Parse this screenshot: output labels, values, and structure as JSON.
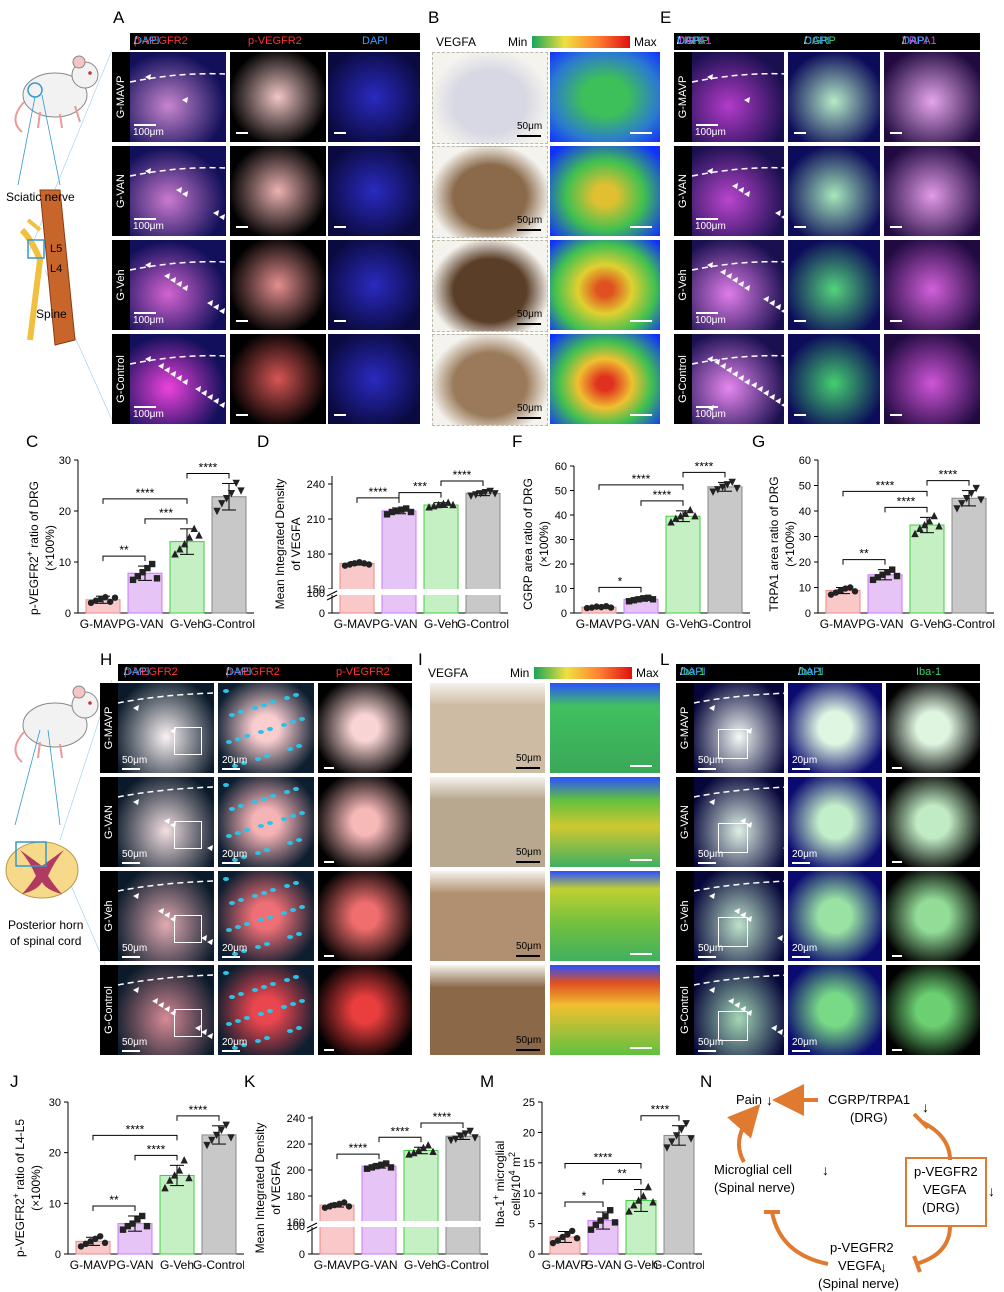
{
  "panel_labels": {
    "A": "A",
    "B": "B",
    "C": "C",
    "D": "D",
    "E": "E",
    "F": "F",
    "G": "G",
    "H": "H",
    "I": "I",
    "J": "J",
    "K": "K",
    "L": "L",
    "M": "M",
    "N": "N"
  },
  "groups": [
    "G-MAVP",
    "G-VAN",
    "G-Veh",
    "G-Control"
  ],
  "anatomy_top": {
    "sciatic": "Sciatic nerve",
    "l5": "L5",
    "l4": "L4",
    "spine": "Spine"
  },
  "anatomy_bottom": {
    "horn_line1": "Posterior horn",
    "horn_line2": "of spinal cord"
  },
  "panel_A": {
    "h1a": "p-VEGFR2",
    "h1b": "/",
    "h1c": "DAPI",
    "h2": "p-VEGFR2",
    "h3": "DAPI",
    "scale": "100μm"
  },
  "panel_B": {
    "title": "VEGFA",
    "min": "Min",
    "max": "Max",
    "scale": "50μm"
  },
  "panel_E": {
    "h1a": "CGRP",
    "h1b": "/",
    "h1c": "TRPA1",
    "h1d": "/",
    "h1e": "DAPI",
    "h2a": "CGRP",
    "h2b": "/",
    "h2c": "DAPI",
    "h3a": "TRPA1",
    "h3b": "/",
    "h3c": "DAPI",
    "scale": "100μm"
  },
  "panel_H": {
    "h1a": "p-VEGFR2",
    "h1b": "/",
    "h1c": "DAPI",
    "h2a": "p-VEGFR2",
    "h2b": "/",
    "h2c": "DAPI",
    "h3": "p-VEGFR2",
    "scale1": "50μm",
    "scale2": "20μm"
  },
  "panel_I": {
    "title": "VEGFA",
    "min": "Min",
    "max": "Max",
    "scale": "50μm"
  },
  "panel_L": {
    "h1a": "Iba-1",
    "h1b": "/",
    "h1c": "DAPI",
    "h2a": "Iba-1",
    "h2b": "/",
    "h2c": "DAPI",
    "h3": "Iba-1",
    "scale1": "50μm",
    "scale2": "20μm"
  },
  "colors": {
    "mavp": "#f9c8c8",
    "van": "#e6c4f5",
    "veh": "#c4f0c4",
    "control": "#c8c8c8",
    "mavp_edge": "#e88",
    "van_edge": "#c7f",
    "veh_edge": "#4c4",
    "control_edge": "#888",
    "arrow": "#e07a30"
  },
  "chart_data": [
    {
      "id": "C",
      "type": "bar",
      "categories": [
        "G-MAVP",
        "G-VAN",
        "G-Veh",
        "G-Control"
      ],
      "values": [
        2.6,
        7.8,
        14.0,
        22.8
      ],
      "sd": [
        0.7,
        1.4,
        2.5,
        2.6
      ],
      "points": [
        [
          2.0,
          2.4,
          2.7,
          3.1,
          2.2,
          3.0
        ],
        [
          6.5,
          7.2,
          8.0,
          8.8,
          9.6,
          6.8
        ],
        [
          11.5,
          12.5,
          13.5,
          14.8,
          16.5,
          15.2
        ],
        [
          20.0,
          21.5,
          22.5,
          23.5,
          25.5,
          24.0
        ]
      ],
      "ylabel_a": "p-VEGFR2",
      "ylabel_sup": "+",
      "ylabel_b": " ratio of DRG",
      "ylabel2": "(×100%)",
      "ylim": [
        0,
        30
      ],
      "ticks": [
        "0",
        "10",
        "20",
        "30"
      ],
      "brackets": [
        {
          "from": 0,
          "to": 1,
          "label": "**"
        },
        {
          "from": 1,
          "to": 2,
          "label": "***"
        },
        {
          "from": 0,
          "to": 2,
          "label": "****"
        },
        {
          "from": 2,
          "to": 3,
          "label": "****"
        }
      ]
    },
    {
      "id": "D",
      "type": "bar",
      "categories": [
        "G-MAVP",
        "G-VAN",
        "G-Veh",
        "G-Control"
      ],
      "values": [
        172,
        217,
        222,
        232
      ],
      "sd": [
        1.5,
        2.5,
        2.0,
        2.0
      ],
      "points": [
        [
          170,
          171,
          172,
          173,
          172,
          171
        ],
        [
          214,
          216,
          217,
          218,
          219,
          216
        ],
        [
          220,
          221,
          222,
          223,
          224,
          222
        ],
        [
          230,
          231,
          232,
          233,
          234,
          232
        ]
      ],
      "ylabel1": "Mean Integrated Density",
      "ylabel2": "of VEGFA",
      "ticks": [
        "0",
        "100",
        "150",
        "180",
        "210",
        "240"
      ],
      "brackets": [
        {
          "from": 0,
          "to": 1,
          "label": "****"
        },
        {
          "from": 1,
          "to": 2,
          "label": "***"
        },
        {
          "from": 2,
          "to": 3,
          "label": "****"
        }
      ]
    },
    {
      "id": "F",
      "type": "bar",
      "categories": [
        "G-MAVP",
        "G-VAN",
        "G-Veh",
        "G-Control"
      ],
      "values": [
        2.4,
        5.6,
        39.5,
        51.5
      ],
      "sd": [
        0.5,
        0.8,
        2.2,
        1.8
      ],
      "points": [
        [
          2.0,
          2.2,
          2.6,
          2.4,
          2.8,
          2.2
        ],
        [
          4.8,
          5.2,
          5.6,
          6.0,
          6.2,
          5.6
        ],
        [
          37.0,
          38.5,
          39.5,
          40.5,
          42.0,
          39.5
        ],
        [
          49.5,
          50.5,
          51.5,
          52.5,
          53.5,
          51.0
        ]
      ],
      "ylabel1": "CGRP area ratio of DRG",
      "ylabel2": "(×100%)",
      "ylim": [
        0,
        60
      ],
      "ticks": [
        "0",
        "10",
        "20",
        "30",
        "40",
        "50",
        "60"
      ],
      "brackets": [
        {
          "from": 0,
          "to": 1,
          "label": "*"
        },
        {
          "from": 1,
          "to": 2,
          "label": "****"
        },
        {
          "from": 0,
          "to": 2,
          "label": "****"
        },
        {
          "from": 2,
          "to": 3,
          "label": "****"
        }
      ]
    },
    {
      "id": "G",
      "type": "bar",
      "categories": [
        "G-MAVP",
        "G-VAN",
        "G-Veh",
        "G-Control"
      ],
      "values": [
        8.8,
        15.0,
        34.5,
        45.0
      ],
      "sd": [
        1.2,
        2.0,
        3.0,
        3.0
      ],
      "points": [
        [
          7.2,
          8.0,
          8.8,
          9.6,
          10.0,
          8.5
        ],
        [
          13.0,
          14.0,
          15.0,
          16.0,
          17.0,
          14.5
        ],
        [
          31.0,
          33.0,
          34.5,
          36.0,
          38.0,
          34.0
        ],
        [
          41.0,
          43.0,
          45.0,
          47.0,
          49.0,
          44.5
        ]
      ],
      "ylabel1": "TRPA1 area ratio of DRG",
      "ylabel2": "(×100%)",
      "ylim": [
        0,
        60
      ],
      "ticks": [
        "0",
        "10",
        "20",
        "30",
        "40",
        "50",
        "60"
      ],
      "brackets": [
        {
          "from": 0,
          "to": 1,
          "label": "**"
        },
        {
          "from": 1,
          "to": 2,
          "label": "****"
        },
        {
          "from": 0,
          "to": 2,
          "label": "****"
        },
        {
          "from": 2,
          "to": 3,
          "label": "****"
        }
      ]
    },
    {
      "id": "J",
      "type": "bar",
      "categories": [
        "G-MAVP",
        "G-VAN",
        "G-Veh",
        "G-Control"
      ],
      "values": [
        2.5,
        6.0,
        15.5,
        23.5
      ],
      "sd": [
        0.8,
        1.5,
        2.0,
        1.8
      ],
      "points": [
        [
          1.5,
          2.0,
          2.5,
          3.0,
          3.5,
          2.2
        ],
        [
          4.8,
          5.5,
          6.0,
          6.8,
          7.5,
          5.5
        ],
        [
          13.0,
          14.5,
          15.5,
          16.5,
          18.5,
          15.0
        ],
        [
          21.5,
          22.5,
          23.5,
          24.5,
          25.5,
          23.0
        ]
      ],
      "ylabel_a": "p-VEGFR2",
      "ylabel_sup": "+",
      "ylabel_b": " ratio of L4-L5",
      "ylabel2": "(×100%)",
      "ylim": [
        0,
        30
      ],
      "ticks": [
        "0",
        "10",
        "20",
        "30"
      ],
      "brackets": [
        {
          "from": 0,
          "to": 1,
          "label": "**"
        },
        {
          "from": 1,
          "to": 2,
          "label": "****"
        },
        {
          "from": 0,
          "to": 2,
          "label": "****"
        },
        {
          "from": 2,
          "to": 3,
          "label": "****"
        }
      ]
    },
    {
      "id": "K",
      "type": "bar",
      "categories": [
        "G-MAVP",
        "G-VAN",
        "G-Veh",
        "G-Control"
      ],
      "values": [
        173,
        203,
        215,
        226
      ],
      "sd": [
        1.5,
        1.5,
        2.5,
        2.5
      ],
      "points": [
        [
          171,
          172,
          173,
          174,
          175,
          172
        ],
        [
          201,
          202,
          203,
          204,
          205,
          202
        ],
        [
          212,
          213,
          215,
          217,
          219,
          214
        ],
        [
          223,
          224,
          226,
          228,
          230,
          225
        ]
      ],
      "ylabel1": "Mean Integrated Density",
      "ylabel2": "of VEGFA",
      "ticks": [
        "0",
        "100",
        "160",
        "180",
        "200",
        "220",
        "240"
      ],
      "brackets": [
        {
          "from": 0,
          "to": 1,
          "label": "****"
        },
        {
          "from": 1,
          "to": 2,
          "label": "****"
        },
        {
          "from": 2,
          "to": 3,
          "label": "****"
        }
      ]
    },
    {
      "id": "M",
      "type": "bar",
      "categories": [
        "G-MAVP",
        "G-VAN",
        "G-Veh",
        "G-Control"
      ],
      "values": [
        2.8,
        5.5,
        8.8,
        19.5
      ],
      "sd": [
        0.9,
        1.4,
        1.8,
        1.6
      ],
      "points": [
        [
          1.8,
          2.2,
          2.8,
          3.2,
          3.8,
          2.6
        ],
        [
          4.0,
          4.8,
          5.5,
          6.2,
          7.2,
          5.2
        ],
        [
          7.0,
          8.0,
          8.8,
          9.5,
          11.0,
          8.5
        ],
        [
          17.5,
          18.5,
          19.5,
          20.5,
          21.5,
          19.0
        ]
      ],
      "ylabel_a": "Iba-1",
      "ylabel_sup": "+",
      "ylabel_b": " microglial",
      "ylabel2a": "cells/10",
      "ylabel2sup": "4",
      "ylabel2b": " m",
      "ylabel2sup2": "2",
      "ylim": [
        0,
        25
      ],
      "ticks": [
        "0",
        "5",
        "10",
        "15",
        "20",
        "25"
      ],
      "brackets": [
        {
          "from": 0,
          "to": 1,
          "label": "*"
        },
        {
          "from": 1,
          "to": 2,
          "label": "**"
        },
        {
          "from": 0,
          "to": 2,
          "label": "****"
        },
        {
          "from": 2,
          "to": 3,
          "label": "****"
        }
      ]
    }
  ],
  "diagram_N": {
    "pain": "Pain",
    "cgrp": "CGRP/TRPA1",
    "drg": "(DRG)",
    "micro": "Microglial cell",
    "spinal_nerve": "(Spinal nerve)",
    "box1": "p-VEGFR2",
    "box2": "VEGFA",
    "box3": "(DRG)",
    "p1": "p-VEGFR2",
    "p2": "VEGFA",
    "p3": "(Spinal nerve)",
    "down": "↓"
  }
}
